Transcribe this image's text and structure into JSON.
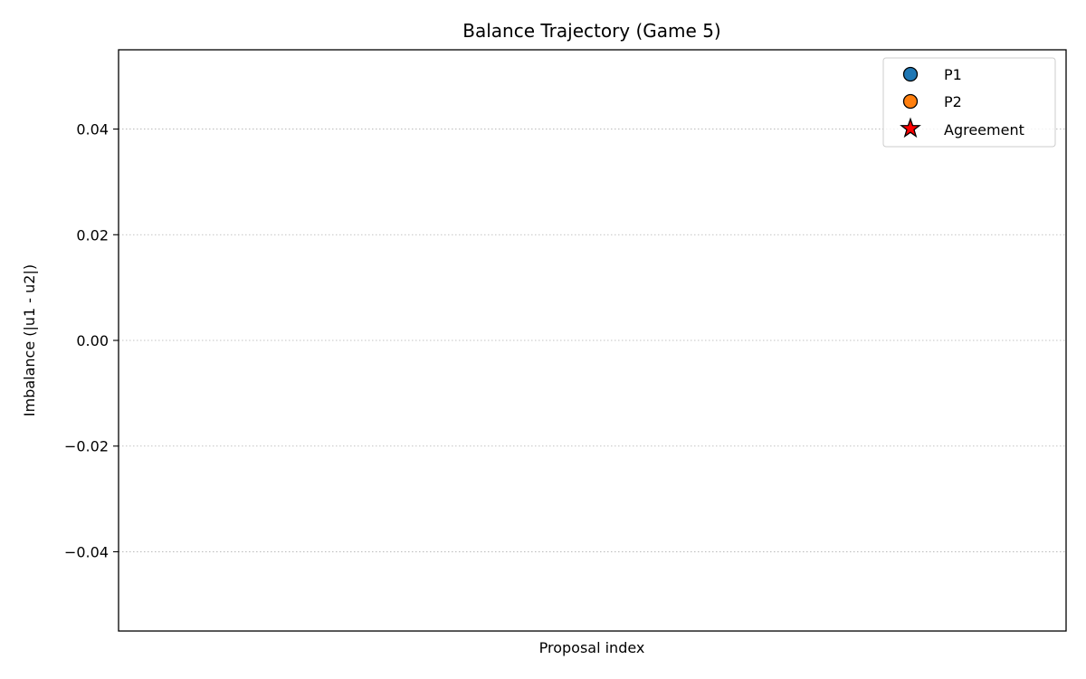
{
  "chart_data": {
    "type": "scatter",
    "title": "Balance Trajectory (Game 5)",
    "xlabel": "Proposal index",
    "ylabel": "Imbalance (|u1 - u2|)",
    "ylim": [
      -0.055,
      0.055
    ],
    "yticks": [
      -0.04,
      -0.02,
      0.0,
      0.02,
      0.04
    ],
    "ytick_labels": [
      "−0.04",
      "−0.02",
      "0.00",
      "0.02",
      "0.04"
    ],
    "grid": "y, dotted",
    "legend_position": "top-right",
    "series": [
      {
        "name": "P1",
        "marker": "circle",
        "color": "#1f77b4",
        "points": []
      },
      {
        "name": "P2",
        "marker": "circle",
        "color": "#ff7f0e",
        "points": []
      },
      {
        "name": "Agreement",
        "marker": "star",
        "color": "#ff0000",
        "points": []
      }
    ]
  }
}
